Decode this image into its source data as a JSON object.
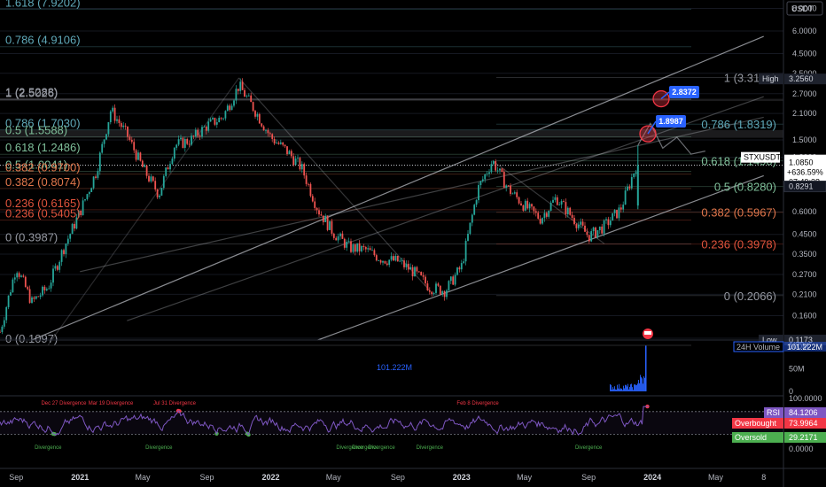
{
  "currency": "USDT",
  "colors": {
    "background": "#000000",
    "candle_up": "#26a69a",
    "candle_down": "#ef5350",
    "rsi_line": "#7e57c2",
    "fib_teal": "#5fa8b8",
    "fib_green": "#7fbf9a",
    "fib_red": "#e0533c",
    "fib_orange": "#e2774c",
    "fib_gray": "#9598a1",
    "volume_bar": "#2962ff",
    "arrow_blue": "#2962ff",
    "circle_red": "#f23645"
  },
  "icons": {
    "event_marker": "flag-icon"
  },
  "price_axis": {
    "scale": "log",
    "ticks": [
      "8.0000",
      "6.0000",
      "4.5000",
      "3.5000",
      "2.7000",
      "2.1000",
      "1.5000",
      "1.2000",
      "0.6000",
      "0.4500",
      "0.3500",
      "0.2700",
      "0.2100",
      "0.1600",
      "0.1200"
    ],
    "tags": [
      {
        "label": "High",
        "value": "3.2560",
        "price": 3.256
      },
      {
        "label": "STXUSDT",
        "value": "1.0850",
        "extra1": "+636.59%",
        "extra2": "07:49:38",
        "price": 1.085
      },
      {
        "label": "",
        "value": "0.8291",
        "price": 0.8291
      },
      {
        "label": "Low",
        "value": "0.1173",
        "price": 0.1173
      }
    ]
  },
  "volume_axis": {
    "ticks": [
      "100M",
      "50M",
      "0"
    ],
    "label": "24H Volume",
    "value": "101.222M",
    "annotation": "101.222M"
  },
  "rsi_axis": {
    "ticks": [
      "100.0000",
      "0.0000"
    ],
    "tags": [
      {
        "label": "RSI",
        "value": "84.1206",
        "level": 84.1206
      },
      {
        "label": "Overbought",
        "value": "73.9964",
        "level": 73.9964
      },
      {
        "label": "Oversold",
        "value": "29.2171",
        "level": 29.2171
      }
    ]
  },
  "time_axis": {
    "labels": [
      "Sep",
      "2021",
      "May",
      "Sep",
      "2022",
      "May",
      "Sep",
      "2023",
      "May",
      "Sep",
      "2024",
      "May",
      "8"
    ]
  },
  "chart_data": {
    "type": "candlestick",
    "symbol": "STXUSDT",
    "y_scale": "log",
    "ylim": [
      0.1173,
      8.0
    ],
    "price_path": [
      {
        "x": "2020-08",
        "y": 0.13
      },
      {
        "x": "2020-09",
        "y": 0.3
      },
      {
        "x": "2020-10",
        "y": 0.19
      },
      {
        "x": "2020-11",
        "y": 0.23
      },
      {
        "x": "2020-12",
        "y": 0.38
      },
      {
        "x": "2021-01",
        "y": 0.6
      },
      {
        "x": "2021-02",
        "y": 1.0
      },
      {
        "x": "2021-03",
        "y": 2.2
      },
      {
        "x": "2021-04",
        "y": 1.6
      },
      {
        "x": "2021-05",
        "y": 1.05
      },
      {
        "x": "2021-06",
        "y": 0.75
      },
      {
        "x": "2021-07",
        "y": 1.4
      },
      {
        "x": "2021-08",
        "y": 1.5
      },
      {
        "x": "2021-09",
        "y": 1.8
      },
      {
        "x": "2021-10",
        "y": 2.0
      },
      {
        "x": "2021-11",
        "y": 3.0
      },
      {
        "x": "2021-12",
        "y": 2.2
      },
      {
        "x": "2022-01",
        "y": 1.55
      },
      {
        "x": "2022-02",
        "y": 1.3
      },
      {
        "x": "2022-03",
        "y": 1.05
      },
      {
        "x": "2022-04",
        "y": 0.62
      },
      {
        "x": "2022-05",
        "y": 0.46
      },
      {
        "x": "2022-06",
        "y": 0.38
      },
      {
        "x": "2022-07",
        "y": 0.37
      },
      {
        "x": "2022-08",
        "y": 0.33
      },
      {
        "x": "2022-09",
        "y": 0.32
      },
      {
        "x": "2022-10",
        "y": 0.28
      },
      {
        "x": "2022-11",
        "y": 0.23
      },
      {
        "x": "2022-12",
        "y": 0.22
      },
      {
        "x": "2023-01",
        "y": 0.3
      },
      {
        "x": "2023-02",
        "y": 0.8
      },
      {
        "x": "2023-03",
        "y": 1.15
      },
      {
        "x": "2023-04",
        "y": 0.8
      },
      {
        "x": "2023-05",
        "y": 0.65
      },
      {
        "x": "2023-06",
        "y": 0.55
      },
      {
        "x": "2023-07",
        "y": 0.72
      },
      {
        "x": "2023-08",
        "y": 0.56
      },
      {
        "x": "2023-09",
        "y": 0.44
      },
      {
        "x": "2023-10",
        "y": 0.5
      },
      {
        "x": "2023-11",
        "y": 0.62
      },
      {
        "x": "2023-12",
        "y": 1.085
      }
    ],
    "fib_levels": [
      {
        "label": "1.618 (7.9202)",
        "value": 7.9202,
        "side": "left",
        "color": "#5fa8b8"
      },
      {
        "label": "0.786 (4.9106)",
        "value": 4.9106,
        "side": "left",
        "color": "#5fa8b8"
      },
      {
        "label": "1 (2.5288)",
        "value": 2.5288,
        "side": "left",
        "color": "#9598a1"
      },
      {
        "label": "1 (2.5026)",
        "value": 2.5026,
        "side": "left",
        "color": "#9598a1"
      },
      {
        "label": "0.786 (1.7030)",
        "value": 1.703,
        "side": "left",
        "color": "#5fa8b8"
      },
      {
        "label": "0.5 (1.5588)",
        "value": 1.5588,
        "side": "left",
        "color": "#7fbf9a"
      },
      {
        "label": "0.618 (1.2486)",
        "value": 1.2486,
        "side": "left",
        "color": "#7fbf9a"
      },
      {
        "label": "0.5 (1.0041)",
        "value": 1.0041,
        "side": "left",
        "color": "#7fbf9a"
      },
      {
        "label": "0.382 (0.9700)",
        "value": 0.97,
        "side": "left",
        "color": "#e2774c"
      },
      {
        "label": "0.382 (0.8074)",
        "value": 0.8074,
        "side": "left",
        "color": "#e2774c"
      },
      {
        "label": "0.236 (0.6165)",
        "value": 0.6165,
        "side": "left",
        "color": "#e0533c"
      },
      {
        "label": "0.236 (0.5405)",
        "value": 0.5405,
        "side": "left",
        "color": "#e0533c"
      },
      {
        "label": "0 (0.3987)",
        "value": 0.3987,
        "side": "left",
        "color": "#9598a1"
      },
      {
        "label": "0 (0.1097)",
        "value": 0.1097,
        "side": "left",
        "color": "#9598a1"
      },
      {
        "label": "1 (3.3185)",
        "value": 3.3185,
        "side": "right",
        "color": "#9598a1"
      },
      {
        "label": "0.786 (1.8319)",
        "value": 1.8319,
        "side": "right",
        "color": "#5fa8b8"
      },
      {
        "label": "0.618 (1.1490)",
        "value": 1.149,
        "side": "right",
        "color": "#7fbf9a"
      },
      {
        "label": "0.5 (0.8280)",
        "value": 0.828,
        "side": "right",
        "color": "#7fbf9a"
      },
      {
        "label": "0.382 (0.5967)",
        "value": 0.5967,
        "side": "right",
        "color": "#e2774c"
      },
      {
        "label": "0.236 (0.3978)",
        "value": 0.3978,
        "side": "right",
        "color": "#e0533c"
      },
      {
        "label": "0 (0.2066)",
        "value": 0.2066,
        "side": "right",
        "color": "#9598a1"
      }
    ],
    "arrow_targets": [
      "2.8372",
      "1.8987"
    ],
    "volume": {
      "series_name": "24H Volume",
      "last": 101.222,
      "unit": "M",
      "ylim": [
        0,
        100
      ]
    },
    "rsi": {
      "last": 84.1206,
      "overbought": 73.9964,
      "oversold": 29.2171,
      "ylim": [
        0,
        100
      ]
    },
    "annotations": [
      {
        "text": "Dec 27 Divergence",
        "date": "2020-12-27",
        "panel": "rsi",
        "position": "top"
      },
      {
        "text": "Mar 19 Divergence",
        "date": "2021-03-19",
        "panel": "rsi",
        "position": "top"
      },
      {
        "text": "Jul 31 Divergence",
        "date": "2021-07-31",
        "panel": "rsi",
        "position": "top"
      },
      {
        "text": "Feb 8 Divergence",
        "date": "2023-02-08",
        "panel": "rsi",
        "position": "top"
      },
      {
        "text": "Divergence",
        "date": "2020-11",
        "panel": "rsi",
        "position": "bottom"
      },
      {
        "text": "Divergence",
        "date": "2021-06",
        "panel": "rsi",
        "position": "bottom"
      },
      {
        "text": "Divergence",
        "date": "2022-06",
        "panel": "rsi",
        "position": "bottom"
      },
      {
        "text": "Divergence",
        "date": "2022-07",
        "panel": "rsi",
        "position": "bottom"
      },
      {
        "text": "Divergence",
        "date": "2022-08",
        "panel": "rsi",
        "position": "bottom"
      },
      {
        "text": "Divergence",
        "date": "2022-11",
        "panel": "rsi",
        "position": "bottom"
      },
      {
        "text": "Divergence",
        "date": "2023-09",
        "panel": "rsi",
        "position": "bottom"
      }
    ]
  }
}
